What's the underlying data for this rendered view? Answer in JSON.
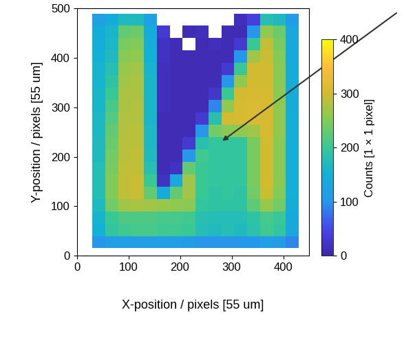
{
  "chart_data": {
    "type": "heatmap",
    "x_label": "X-position / pixels [55 um]",
    "y_label": "Y-position / pixels [55 um]",
    "xlim": [
      0,
      450
    ],
    "ylim": [
      0,
      500
    ],
    "xticks": [
      0,
      100,
      200,
      300,
      400
    ],
    "yticks": [
      0,
      100,
      200,
      300,
      400,
      500
    ],
    "x_edges": [
      30,
      55,
      80,
      105,
      130,
      155,
      180,
      205,
      230,
      255,
      280,
      305,
      330,
      355,
      380,
      405,
      430
    ],
    "y_edges": [
      15,
      40,
      65,
      90,
      115,
      140,
      165,
      190,
      215,
      240,
      265,
      290,
      315,
      340,
      365,
      390,
      415,
      440,
      465,
      490
    ],
    "cells": [
      [
        100,
        115,
        115,
        115,
        115,
        115,
        115,
        110,
        100,
        100,
        100,
        100,
        105,
        115,
        110,
        90
      ],
      [
        150,
        195,
        205,
        210,
        210,
        205,
        205,
        200,
        175,
        170,
        175,
        170,
        185,
        205,
        195,
        130
      ],
      [
        155,
        200,
        215,
        215,
        215,
        210,
        210,
        205,
        180,
        175,
        175,
        175,
        190,
        210,
        200,
        135
      ],
      [
        170,
        240,
        270,
        275,
        270,
        265,
        260,
        255,
        195,
        190,
        190,
        190,
        225,
        265,
        240,
        140
      ],
      [
        175,
        250,
        290,
        295,
        230,
        140,
        230,
        270,
        200,
        190,
        195,
        190,
        240,
        295,
        250,
        145
      ],
      [
        175,
        250,
        290,
        295,
        200,
        20,
        130,
        270,
        200,
        195,
        195,
        195,
        245,
        300,
        255,
        145
      ],
      [
        175,
        245,
        290,
        290,
        180,
        10,
        20,
        230,
        200,
        195,
        195,
        195,
        245,
        300,
        255,
        145
      ],
      [
        170,
        240,
        285,
        290,
        170,
        10,
        10,
        100,
        205,
        195,
        195,
        195,
        245,
        300,
        255,
        145
      ],
      [
        170,
        235,
        285,
        285,
        165,
        10,
        10,
        30,
        180,
        195,
        195,
        195,
        245,
        300,
        255,
        145
      ],
      [
        165,
        230,
        280,
        285,
        165,
        10,
        10,
        10,
        100,
        240,
        255,
        260,
        270,
        305,
        260,
        145
      ],
      [
        165,
        220,
        280,
        280,
        160,
        10,
        10,
        10,
        30,
        180,
        300,
        305,
        310,
        305,
        260,
        145
      ],
      [
        160,
        210,
        275,
        280,
        160,
        15,
        10,
        10,
        10,
        90,
        260,
        305,
        310,
        305,
        260,
        140
      ],
      [
        160,
        200,
        275,
        275,
        160,
        15,
        10,
        10,
        10,
        25,
        200,
        300,
        305,
        305,
        255,
        140
      ],
      [
        155,
        190,
        270,
        275,
        160,
        15,
        10,
        10,
        10,
        10,
        100,
        260,
        300,
        300,
        255,
        140
      ],
      [
        155,
        180,
        265,
        270,
        155,
        15,
        10,
        10,
        10,
        10,
        30,
        200,
        300,
        300,
        255,
        140
      ],
      [
        150,
        170,
        255,
        260,
        150,
        20,
        10,
        10,
        10,
        10,
        10,
        100,
        270,
        295,
        250,
        135
      ],
      [
        145,
        165,
        245,
        250,
        145,
        20,
        10,
        null,
        10,
        15,
        10,
        30,
        200,
        290,
        245,
        135
      ],
      [
        140,
        160,
        230,
        235,
        140,
        30,
        null,
        10,
        15,
        null,
        10,
        10,
        100,
        260,
        235,
        130
      ],
      [
        120,
        140,
        170,
        170,
        120,
        null,
        null,
        null,
        null,
        null,
        null,
        15,
        40,
        180,
        170,
        110
      ]
    ],
    "colorbar": {
      "label": "Counts [1 × 1 pixel]",
      "range": [
        0,
        400
      ],
      "ticks": [
        0,
        100,
        200,
        300,
        400
      ]
    }
  }
}
